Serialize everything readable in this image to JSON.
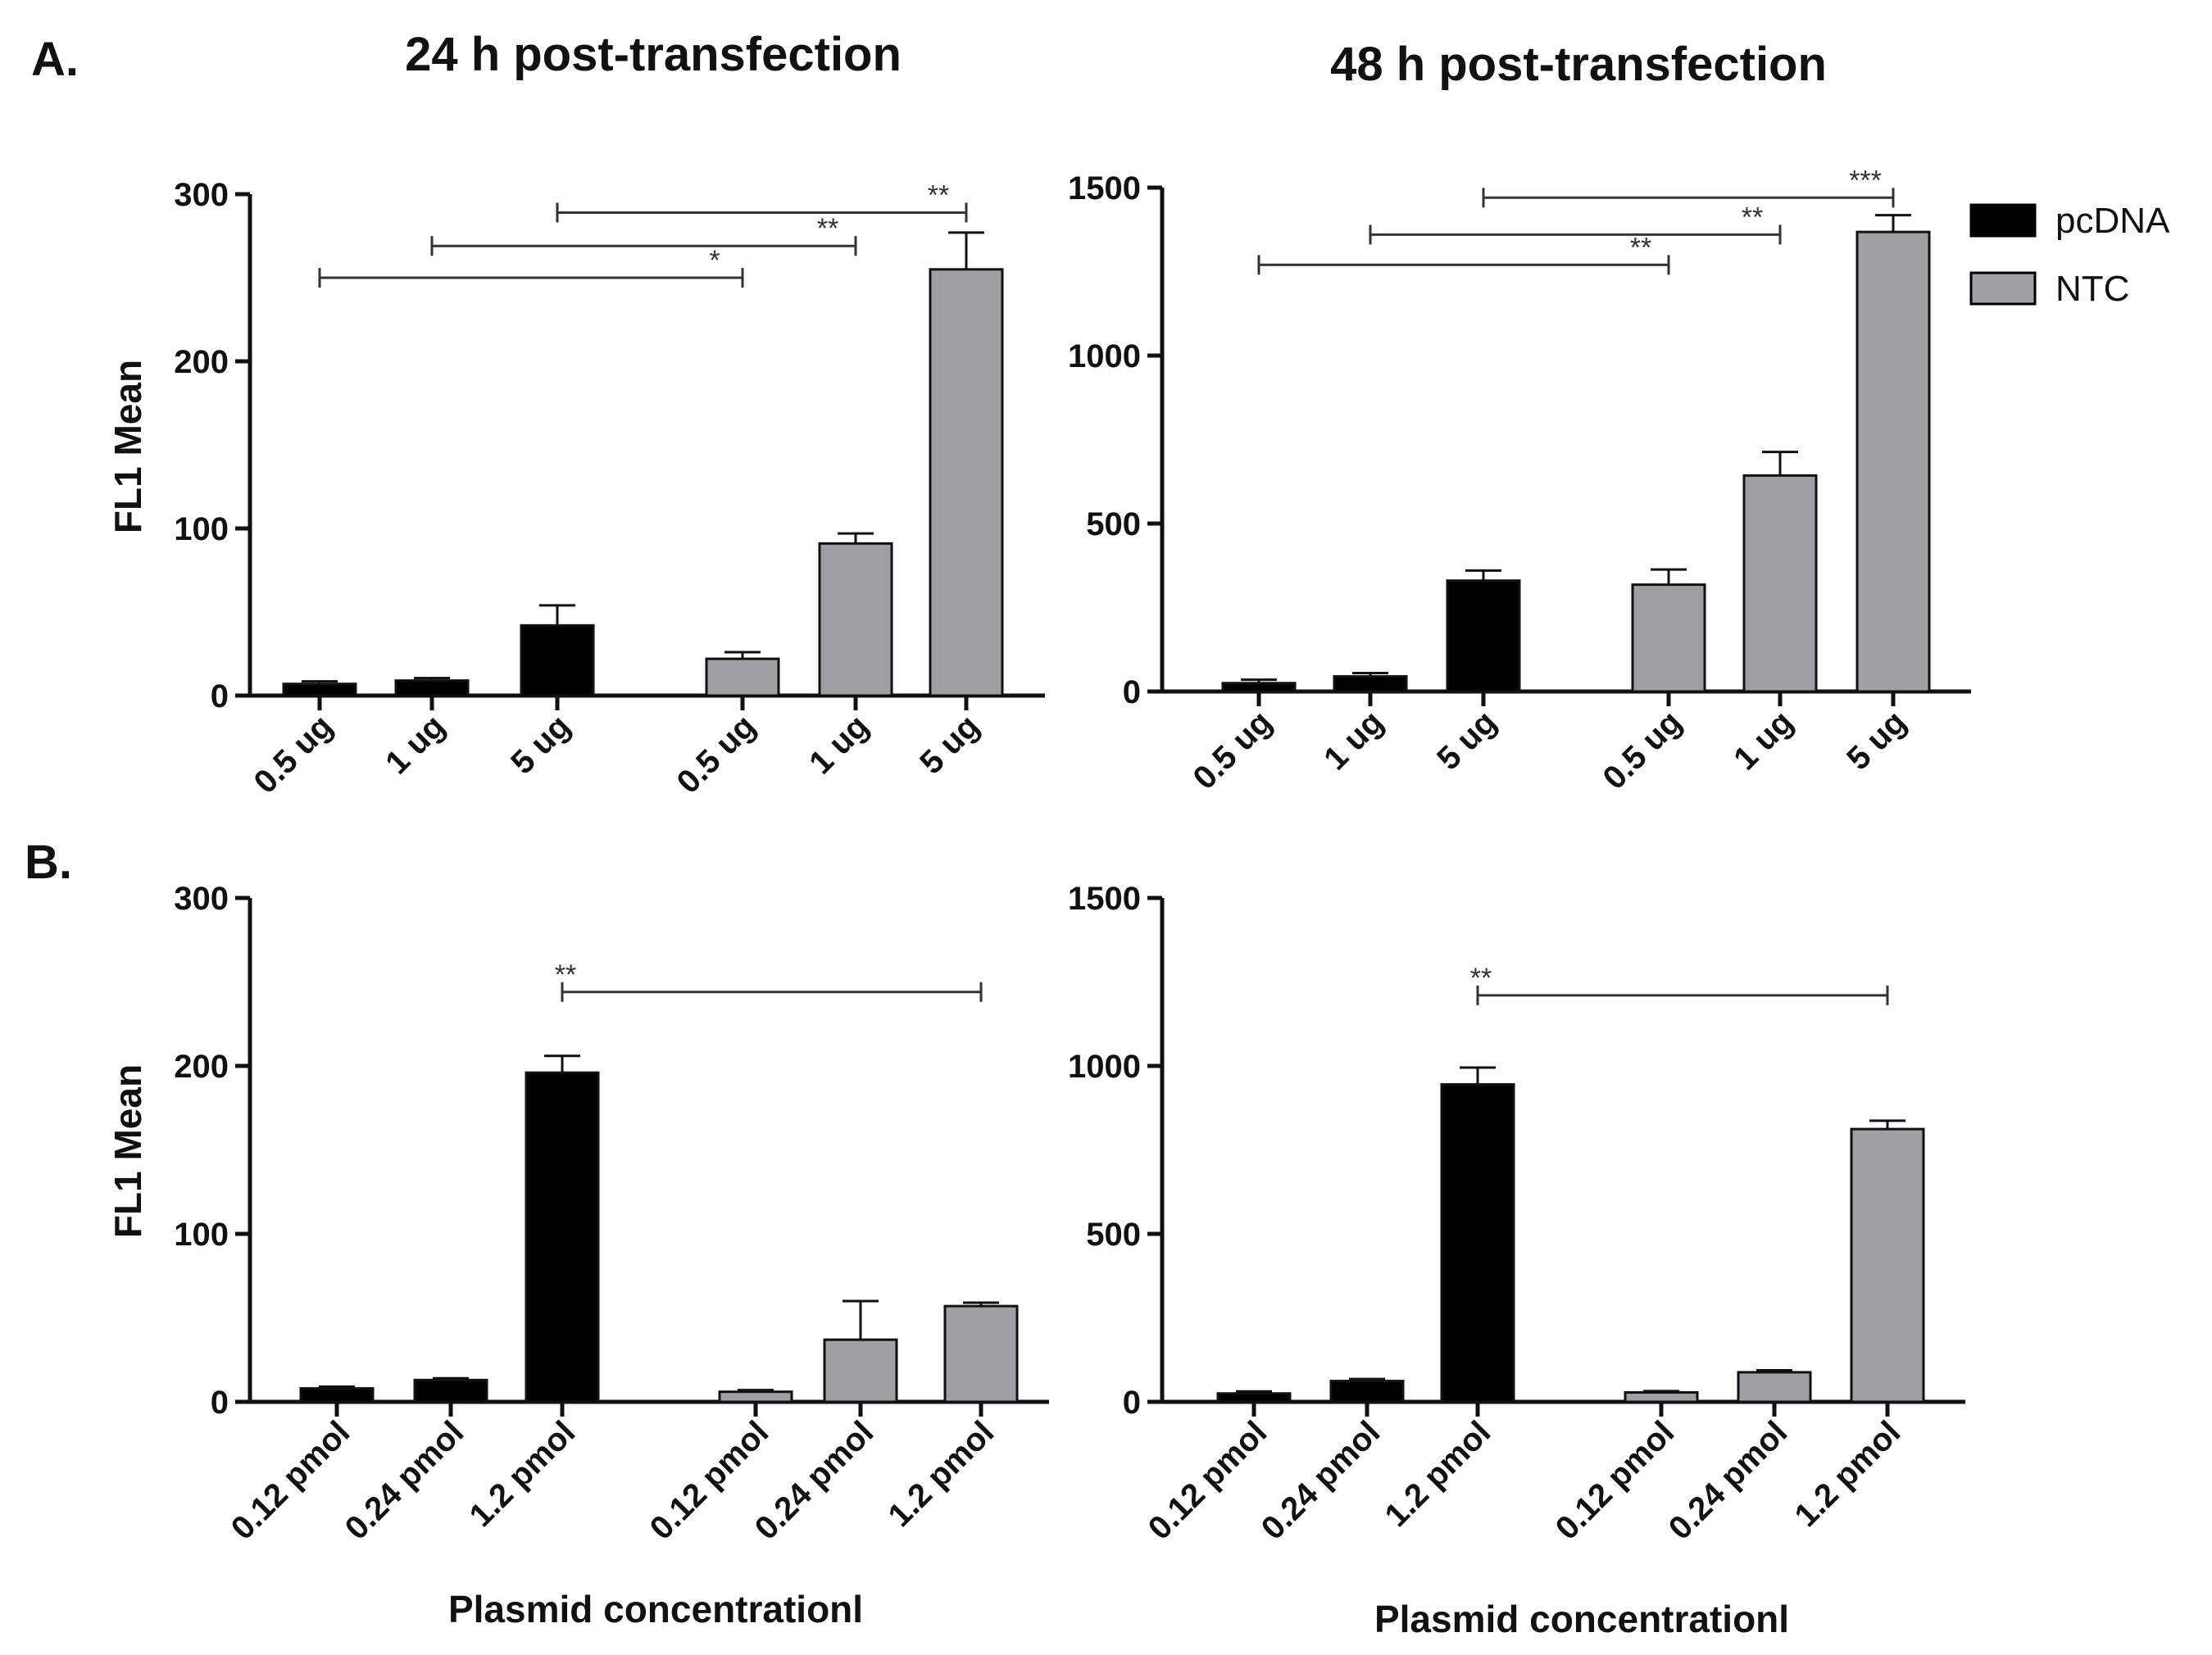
{
  "panel_labels": {
    "a": "A.",
    "b": "B."
  },
  "titles": {
    "left": "24 h post-transfection",
    "right": "48 h post-transfection"
  },
  "ylabel": "FL1 Mean",
  "xlabel": "Plasmid concentrationl",
  "legend": [
    {
      "name": "pcDNA",
      "color": "#000000"
    },
    {
      "name": "NTC",
      "color": "#a0a0a4"
    }
  ],
  "chart_data": [
    {
      "id": "A-24h",
      "type": "bar",
      "ylim": [
        0,
        300
      ],
      "yticks": [
        0,
        100,
        200,
        300
      ],
      "categories": [
        "0.5 ug",
        "1 ug",
        "5 ug",
        "0.5 ug",
        "1 ug",
        "5 ug"
      ],
      "groups": [
        "pcDNA",
        "pcDNA",
        "pcDNA",
        "NTC",
        "NTC",
        "NTC"
      ],
      "values": [
        7,
        9,
        42,
        22,
        91,
        255
      ],
      "errors": [
        1.5,
        1.5,
        12,
        4,
        6,
        22
      ],
      "significance": [
        {
          "from": 0,
          "to": 3,
          "label": "*",
          "y": 250
        },
        {
          "from": 1,
          "to": 4,
          "label": "**",
          "y": 269
        },
        {
          "from": 2,
          "to": 5,
          "label": "**",
          "y": 289
        }
      ]
    },
    {
      "id": "A-48h",
      "type": "bar",
      "ylim": [
        0,
        1500
      ],
      "yticks": [
        0,
        500,
        1000,
        1500
      ],
      "categories": [
        "0.5 ug",
        "1 ug",
        "5 ug",
        "0.5 ug",
        "1 ug",
        "5 ug"
      ],
      "groups": [
        "pcDNA",
        "pcDNA",
        "pcDNA",
        "NTC",
        "NTC",
        "NTC"
      ],
      "values": [
        25,
        45,
        330,
        318,
        643,
        1368
      ],
      "errors": [
        10,
        10,
        30,
        45,
        70,
        50
      ],
      "significance": [
        {
          "from": 0,
          "to": 3,
          "label": "**",
          "y": 1270
        },
        {
          "from": 1,
          "to": 4,
          "label": "**",
          "y": 1360
        },
        {
          "from": 2,
          "to": 5,
          "label": "***",
          "y": 1470
        }
      ]
    },
    {
      "id": "B-24h",
      "type": "bar",
      "ylim": [
        0,
        300
      ],
      "yticks": [
        0,
        100,
        200,
        300
      ],
      "categories": [
        "0.12 pmol",
        "0.24 pmol",
        "1.2 pmol",
        "0.12 pmol",
        "0.24 pmol",
        "1.2 pmol"
      ],
      "groups": [
        "pcDNA",
        "pcDNA",
        "pcDNA",
        "NTC",
        "NTC",
        "NTC"
      ],
      "values": [
        8,
        13,
        196,
        6,
        37,
        57
      ],
      "errors": [
        1,
        1,
        10,
        1,
        23,
        2
      ],
      "significance": [
        {
          "from": 2,
          "to": 5,
          "label": "**",
          "y": 244
        }
      ]
    },
    {
      "id": "B-48h",
      "type": "bar",
      "ylim": [
        0,
        1500
      ],
      "yticks": [
        0,
        500,
        1000,
        1500
      ],
      "categories": [
        "0.12 pmol",
        "0.24 pmol",
        "1.2 pmol",
        "0.12 pmol",
        "0.24 pmol",
        "1.2 pmol"
      ],
      "groups": [
        "pcDNA",
        "pcDNA",
        "pcDNA",
        "NTC",
        "NTC",
        "NTC"
      ],
      "values": [
        25,
        62,
        945,
        28,
        88,
        812
      ],
      "errors": [
        6,
        6,
        50,
        4,
        6,
        25
      ],
      "significance": [
        {
          "from": 2,
          "to": 5,
          "label": "**",
          "y": 1210
        }
      ]
    }
  ]
}
